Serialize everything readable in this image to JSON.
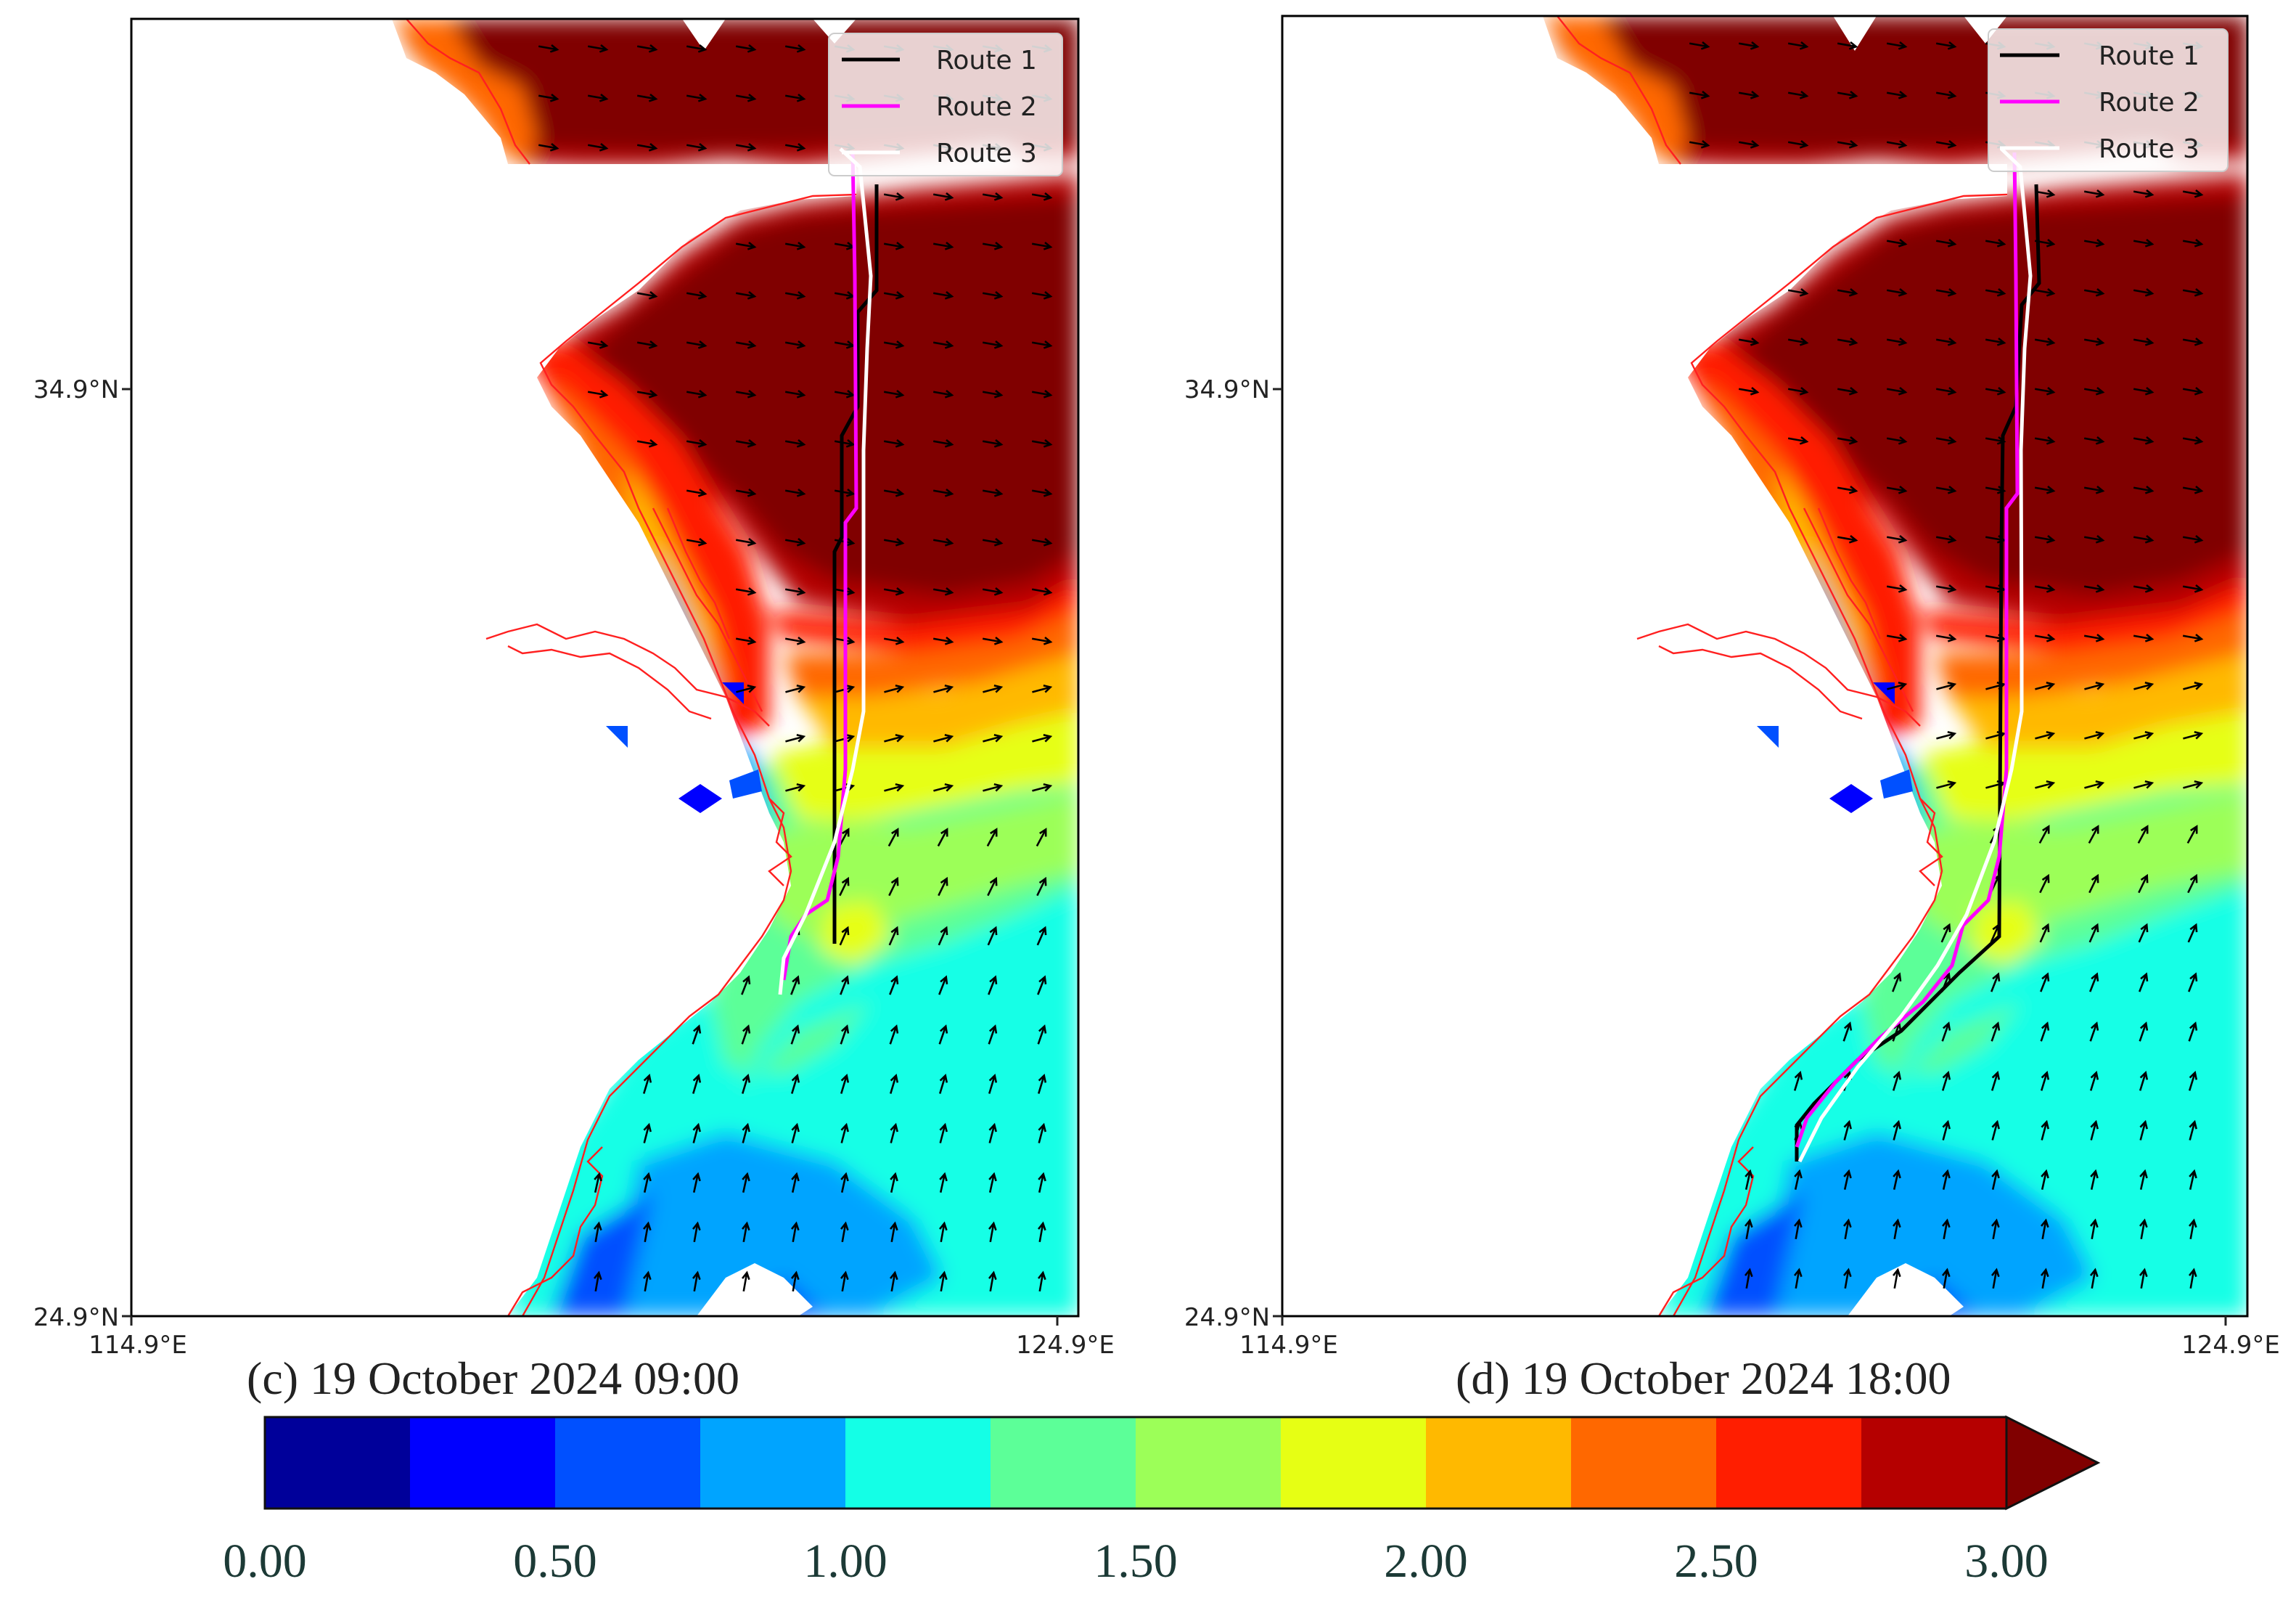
{
  "panels": [
    {
      "id": "c",
      "caption": "(c) 19 October 2024 09:00",
      "lat_labels": [
        "34.9°N",
        "24.9°N"
      ],
      "lon_labels": [
        "114.9°E",
        "124.9°E"
      ]
    },
    {
      "id": "d",
      "caption": "(d) 19 October 2024 18:00",
      "lat_labels": [
        "34.9°N",
        "24.9°N"
      ],
      "lon_labels": [
        "114.9°E",
        "124.9°E"
      ]
    }
  ],
  "map_extent": {
    "lon": [
      114.9,
      124.9
    ],
    "lat": [
      24.9,
      34.9
    ]
  },
  "legend": {
    "placement": "top-right",
    "entries": [
      {
        "label": "Route 1",
        "color": "#000000"
      },
      {
        "label": "Route 2",
        "color": "#ff00ff"
      },
      {
        "label": "Route 3",
        "color": "#ffffff"
      }
    ]
  },
  "colorbar": {
    "tick_labels": [
      "0.00",
      "0.50",
      "1.00",
      "1.50",
      "2.00",
      "2.50",
      "3.00"
    ],
    "extend": "max",
    "colors": [
      "#00009a",
      "#0000ff",
      "#0050ff",
      "#00a4ff",
      "#14ffe6",
      "#5cff98",
      "#9cff58",
      "#e6ff14",
      "#ffb900",
      "#ff6800",
      "#ff1e00",
      "#b50000",
      "#800000"
    ]
  },
  "colors": {
    "coastline": "#ff2020",
    "arrow": "#000000",
    "land": "#ffffff"
  }
}
